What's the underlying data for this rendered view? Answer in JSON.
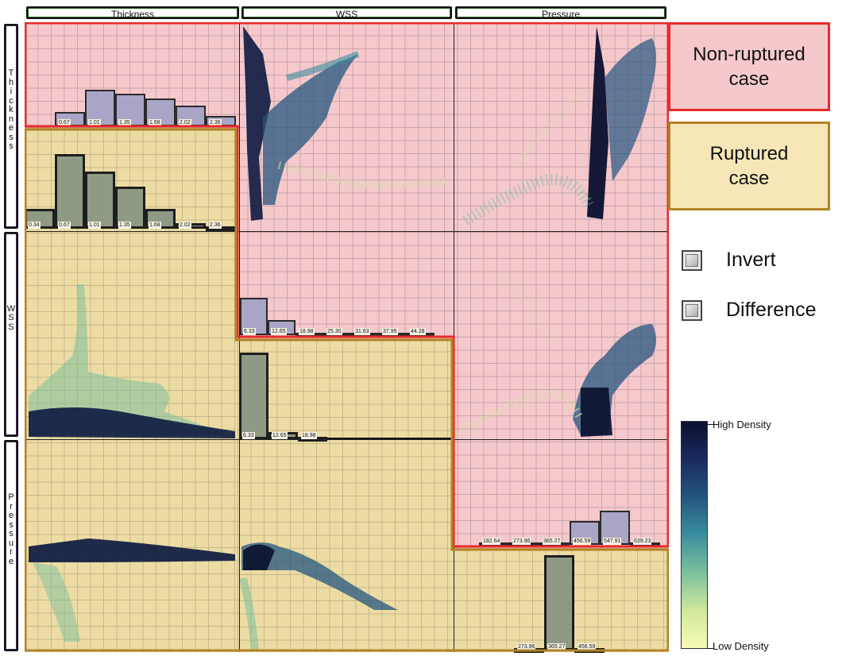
{
  "columns": [
    "Thickness",
    "WSS",
    "Pressure"
  ],
  "rows": [
    "Thickness",
    "WSS",
    "Pressure"
  ],
  "legend": {
    "non_ruptured": "Non-ruptured\ncase",
    "ruptured": "Ruptured\ncase"
  },
  "options": {
    "invert_label": "Invert",
    "difference_label": "Difference"
  },
  "colorbar": {
    "high_label": "High Density",
    "low_label": "Low Density",
    "colors": [
      "#f8fbb8",
      "#cfe79c",
      "#7cc09d",
      "#3b8e9e",
      "#24567f",
      "#1a2a5e",
      "#0a0f2e"
    ]
  },
  "colors": {
    "non_ruptured_region": "#f5c8cc",
    "non_ruptured_border": "#e82a2a",
    "ruptured_region": "#ecdca4",
    "ruptured_border": "#b38225"
  },
  "histograms": {
    "thickness_nonruptured": {
      "ticks": [
        "0.67",
        "1.01",
        "1.35",
        "1.68",
        "2.02",
        "2.36"
      ],
      "values": [
        0.15,
        0.38,
        0.34,
        0.29,
        0.22,
        0.11
      ]
    },
    "thickness_ruptured": {
      "ticks": [
        "0.34",
        "0.67",
        "1.01",
        "1.35",
        "1.68",
        "2.02",
        "2.36"
      ],
      "values": [
        0.21,
        0.78,
        0.6,
        0.44,
        0.21,
        0.06,
        0.02
      ]
    },
    "wss_nonruptured": {
      "ticks": [
        "6.33",
        "12.65",
        "18.98",
        "25.30",
        "31.63",
        "37.95",
        "44.28"
      ],
      "values": [
        0.86,
        0.34,
        0.04,
        0.02,
        0.02,
        0.01,
        0.01
      ]
    },
    "wss_ruptured": {
      "ticks": [
        "6.33",
        "12.65",
        "18.98"
      ],
      "values": [
        0.95,
        0.08,
        0.02
      ]
    },
    "pressure_nonruptured": {
      "ticks": [
        "182.64",
        "273.96",
        "365.27",
        "456.59",
        "547.91",
        "639.23"
      ],
      "values": [
        0.01,
        0.01,
        0.01,
        0.23,
        0.33,
        0.02
      ]
    },
    "pressure_ruptured": {
      "ticks": [
        "273.96",
        "365.27",
        "456.59"
      ],
      "values": [
        0.01,
        0.92,
        0.01
      ]
    }
  }
}
